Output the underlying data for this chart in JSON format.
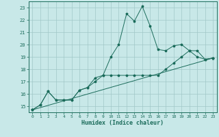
{
  "xlabel": "Humidex (Indice chaleur)",
  "background_color": "#c8e8e8",
  "grid_color": "#a0c8c8",
  "line_color": "#1a6b5a",
  "xlim": [
    -0.5,
    23.5
  ],
  "ylim": [
    14.5,
    23.5
  ],
  "xticks": [
    0,
    1,
    2,
    3,
    4,
    5,
    6,
    7,
    8,
    9,
    10,
    11,
    12,
    13,
    14,
    15,
    16,
    17,
    18,
    19,
    20,
    21,
    22,
    23
  ],
  "yticks": [
    15,
    16,
    17,
    18,
    19,
    20,
    21,
    22,
    23
  ],
  "series": [
    {
      "x": [
        0,
        1,
        2,
        3,
        4,
        5,
        6,
        7,
        8,
        9,
        10,
        11,
        12,
        13,
        14,
        15,
        16,
        17,
        18,
        19,
        20,
        21,
        22,
        23
      ],
      "y": [
        14.7,
        15.1,
        16.2,
        15.5,
        15.5,
        15.5,
        16.3,
        16.5,
        17.0,
        17.5,
        19.0,
        20.0,
        22.5,
        21.9,
        23.1,
        21.5,
        19.6,
        19.5,
        19.9,
        20.0,
        19.5,
        19.0,
        18.8,
        18.9
      ]
    },
    {
      "x": [
        0,
        1,
        2,
        3,
        4,
        5,
        6,
        7,
        8,
        9,
        10,
        11,
        12,
        13,
        14,
        15,
        16,
        17,
        18,
        19,
        20,
        21,
        22,
        23
      ],
      "y": [
        14.7,
        15.1,
        16.2,
        15.5,
        15.5,
        15.5,
        16.3,
        16.5,
        17.3,
        17.5,
        17.5,
        17.5,
        17.5,
        17.5,
        17.5,
        17.5,
        17.5,
        18.0,
        18.5,
        19.0,
        19.5,
        19.5,
        18.8,
        18.9
      ]
    },
    {
      "x": [
        0,
        23
      ],
      "y": [
        14.7,
        18.9
      ]
    }
  ]
}
